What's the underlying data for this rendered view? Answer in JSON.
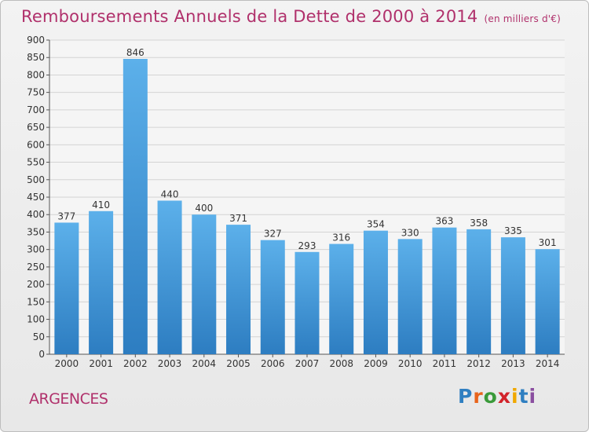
{
  "header": {
    "title": "Remboursements Annuels de la Dette de 2000 à 2014",
    "unit_note": "(en milliers d'€)"
  },
  "location": "ARGENCES",
  "brand": {
    "letters": [
      "P",
      "r",
      "o",
      "x",
      "i",
      "t",
      "i"
    ],
    "colors": [
      "#2f7fc1",
      "#e8641b",
      "#3a9a3a",
      "#d2232a",
      "#f0a800",
      "#2f7fc1",
      "#8a4ea0"
    ]
  },
  "colors": {
    "bar_top": "#5cb0ea",
    "bar_bottom": "#2d7dc1",
    "accent": "#b0306b",
    "grid": "#d4d4d4"
  },
  "chart_data": {
    "type": "bar",
    "title": "Remboursements Annuels de la Dette de 2000 à 2014",
    "subtitle": "(en milliers d'€)",
    "categories": [
      "2000",
      "2001",
      "2002",
      "2003",
      "2004",
      "2005",
      "2006",
      "2007",
      "2008",
      "2009",
      "2010",
      "2011",
      "2012",
      "2013",
      "2014"
    ],
    "values": [
      377,
      410,
      846,
      440,
      400,
      371,
      327,
      293,
      316,
      354,
      330,
      363,
      358,
      335,
      301
    ],
    "ylim": [
      0,
      900
    ],
    "yticks": [
      0,
      50,
      100,
      150,
      200,
      250,
      300,
      350,
      400,
      450,
      500,
      550,
      600,
      650,
      700,
      750,
      800,
      850,
      900
    ],
    "grid": true,
    "legend": "none"
  }
}
